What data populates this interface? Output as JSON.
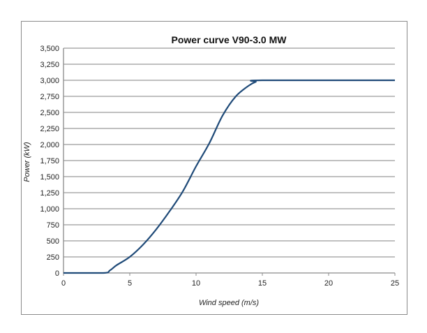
{
  "chart_data": {
    "type": "line",
    "title": "Power curve V90-3.0 MW",
    "xlabel": "Wind speed (m/s)",
    "ylabel": "Power (kW)",
    "xlim": [
      0,
      25
    ],
    "ylim": [
      0,
      3500
    ],
    "xticks": [
      0,
      5,
      10,
      15,
      20,
      25
    ],
    "yticks": [
      0,
      250,
      500,
      750,
      1000,
      1250,
      1500,
      1750,
      2000,
      2250,
      2500,
      2750,
      3000,
      3250,
      3500
    ],
    "ytick_labels": [
      "0",
      "250",
      "500",
      "750",
      "1,000",
      "1,250",
      "1,500",
      "1,750",
      "2,000",
      "2,250",
      "2,500",
      "2,750",
      "3,000",
      "3,250",
      "3,500"
    ],
    "grid": "horizontal",
    "legend": "none",
    "line_color": "#1f4a78",
    "series": [
      {
        "x": [
          0,
          3,
          3.5,
          4,
          5,
          6,
          7,
          8,
          9,
          10,
          11,
          12,
          13,
          14,
          14.5,
          15,
          25
        ],
        "y": [
          0,
          0,
          40,
          120,
          250,
          440,
          680,
          960,
          1270,
          1660,
          2020,
          2450,
          2750,
          2920,
          2975,
          3000,
          3000
        ]
      }
    ]
  }
}
